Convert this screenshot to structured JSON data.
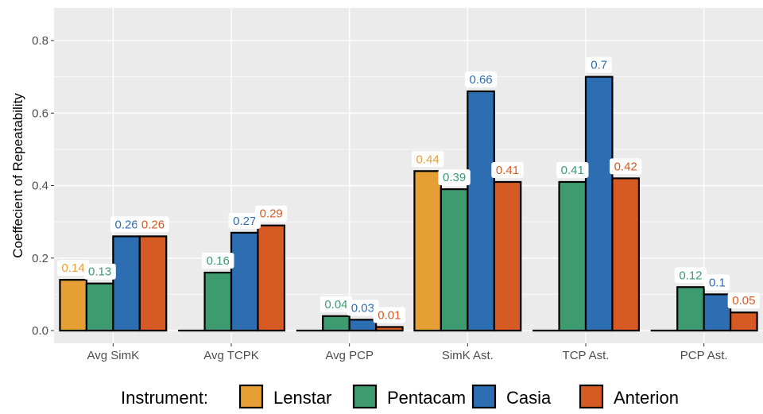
{
  "chart_data": {
    "type": "bar",
    "title": "",
    "xlabel": "",
    "ylabel": "Coeffecient of Repeatability",
    "ylim": [
      -0.035,
      0.89
    ],
    "yticks": [
      0.0,
      0.2,
      0.4,
      0.6,
      0.8
    ],
    "ytick_labels": [
      "0.0",
      "0.2",
      "0.4",
      "0.6",
      "0.8"
    ],
    "grid": true,
    "legend_position": "bottom",
    "legend_title": "Instrument:",
    "categories": [
      "Avg SimK",
      "Avg TCPK",
      "Avg PCP",
      "SimK Ast.",
      "TCP Ast.",
      "PCP Ast."
    ],
    "series": [
      {
        "name": "Lenstar",
        "color": "#E69F35",
        "values": [
          0.14,
          0,
          0,
          0.44,
          0,
          0
        ],
        "labels": [
          "0.14",
          null,
          null,
          "0.44",
          null,
          null
        ]
      },
      {
        "name": "Pentacam",
        "color": "#3E9B6F",
        "values": [
          0.13,
          0.16,
          0.04,
          0.39,
          0.41,
          0.12
        ],
        "labels": [
          "0.13",
          "0.16",
          "0.04",
          "0.39",
          "0.41",
          "0.12"
        ]
      },
      {
        "name": "Casia",
        "color": "#2D6EB3",
        "values": [
          0.26,
          0.27,
          0.03,
          0.66,
          0.7,
          0.1
        ],
        "labels": [
          "0.26",
          "0.27",
          "0.03",
          "0.66",
          "0.7",
          "0.1"
        ]
      },
      {
        "name": "Anterion",
        "color": "#D65A24",
        "values": [
          0.26,
          0.29,
          0.01,
          0.41,
          0.42,
          0.05
        ],
        "labels": [
          "0.26",
          "0.29",
          "0.01",
          "0.41",
          "0.42",
          "0.05"
        ]
      }
    ]
  },
  "colors": {
    "panel_background": "#EBEBEB",
    "grid_major": "#FFFFFF",
    "bar_outline": "#000000"
  }
}
